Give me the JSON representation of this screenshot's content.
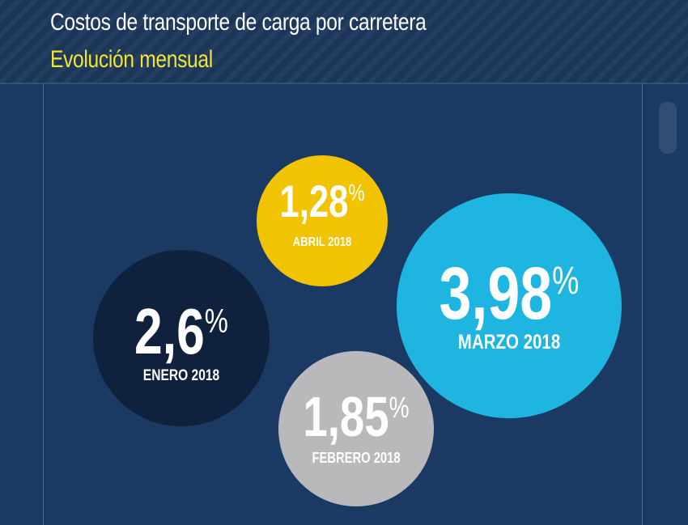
{
  "header": {
    "title": "Costos de transporte de carga por carretera",
    "subtitle": "Evolución mensual"
  },
  "colors": {
    "background": "#1a3a63",
    "title": "#ffffff",
    "subtitle": "#f2e532",
    "value_text": "#ffffff",
    "label_text": "#ffffff"
  },
  "chart_data": {
    "type": "bubble",
    "title": "Costos de transporte de carga por carretera",
    "subtitle": "Evolución mensual",
    "unit": "%",
    "series": [
      {
        "label": "ENERO 2018",
        "value": 2.6,
        "display": "2,6",
        "color": "#0f213d"
      },
      {
        "label": "FEBRERO 2018",
        "value": 1.85,
        "display": "1,85",
        "color": "#b9b9bc"
      },
      {
        "label": "MARZO 2018",
        "value": 3.98,
        "display": "3,98",
        "color": "#1eb5e1"
      },
      {
        "label": "ABRIL 2018",
        "value": 1.28,
        "display": "1,28",
        "color": "#f2c300"
      }
    ]
  }
}
